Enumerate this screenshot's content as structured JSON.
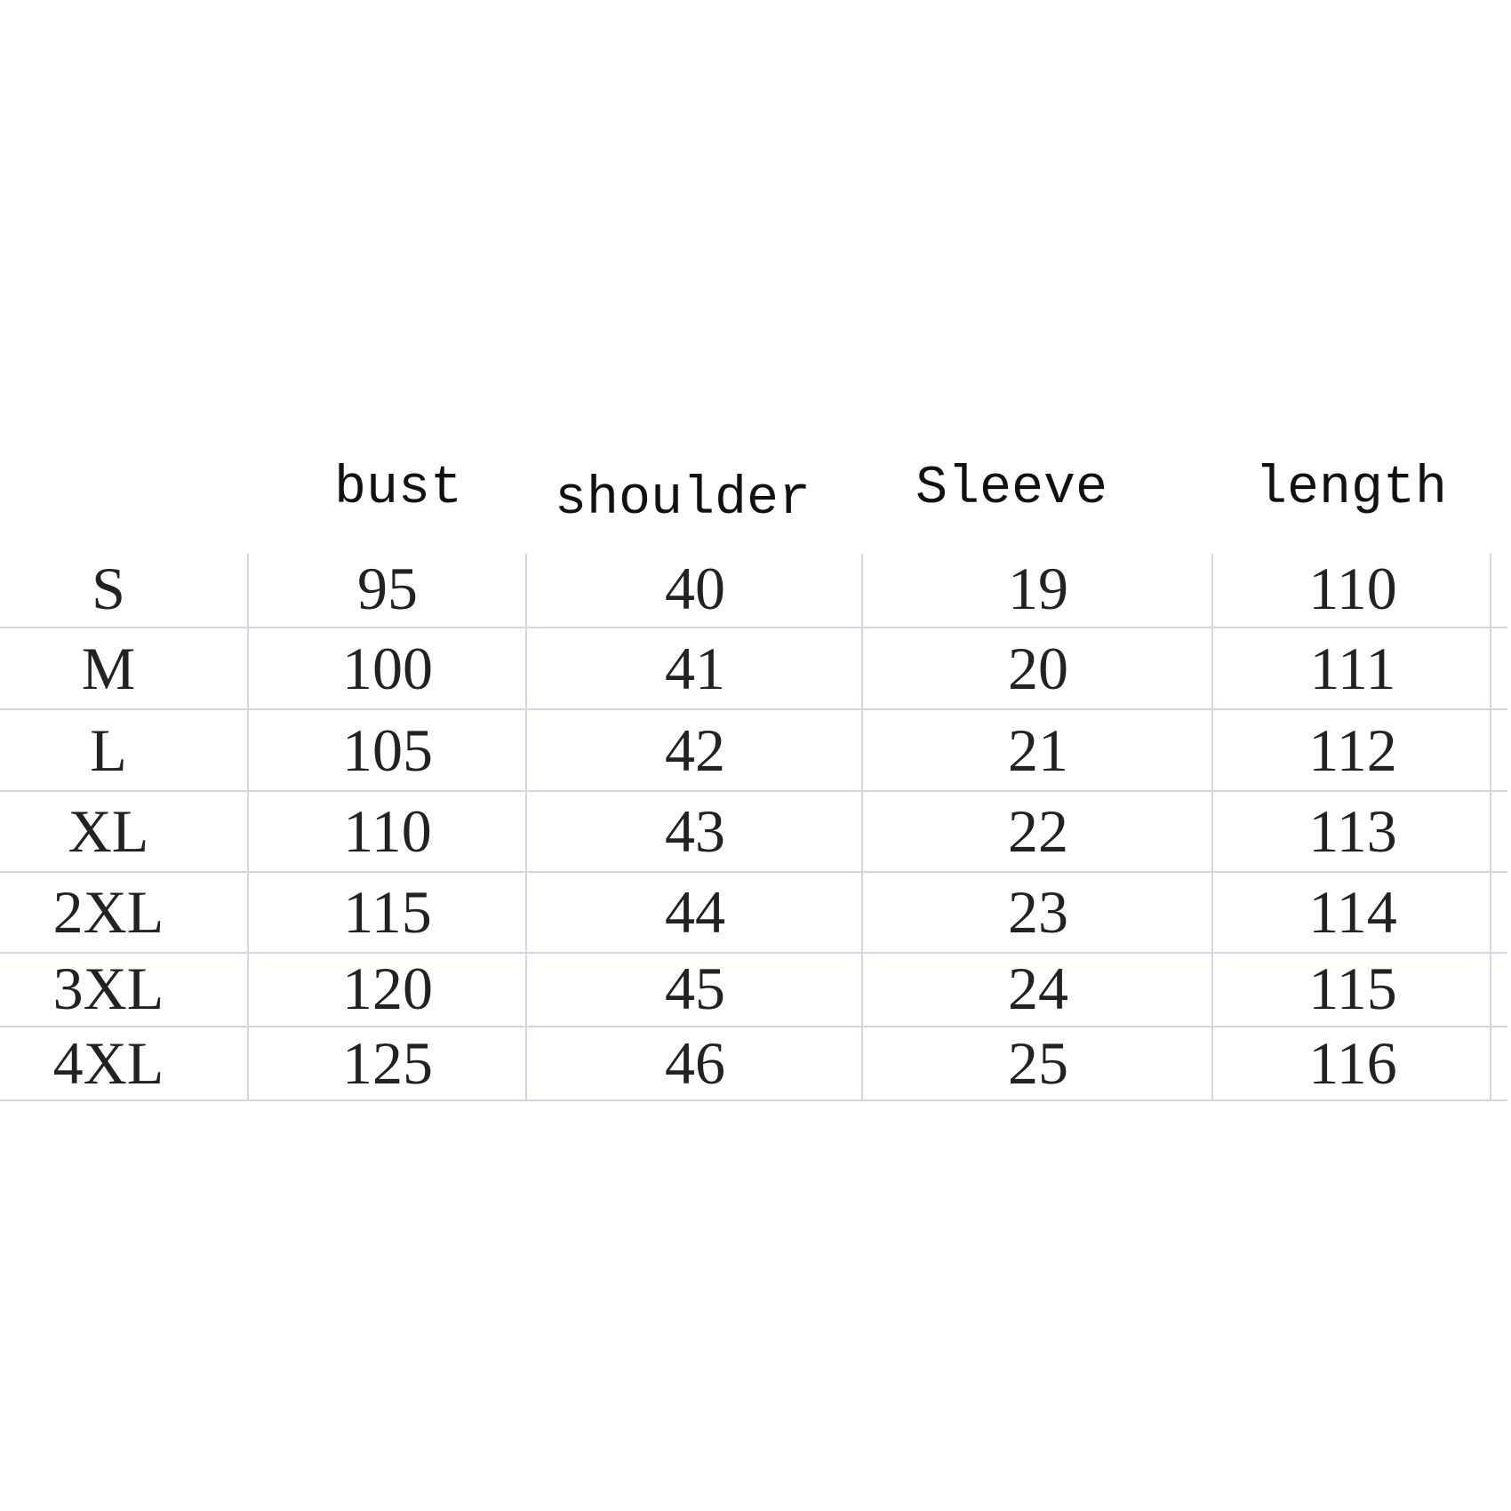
{
  "table": {
    "headers": [
      "bust",
      "shoulder",
      "Sleeve",
      "length"
    ],
    "rows": [
      {
        "size": "S",
        "bust": "95",
        "shoulder": "40",
        "sleeve": "19",
        "length": "110"
      },
      {
        "size": "M",
        "bust": "100",
        "shoulder": "41",
        "sleeve": "20",
        "length": "111"
      },
      {
        "size": "L",
        "bust": "105",
        "shoulder": "42",
        "sleeve": "21",
        "length": "112"
      },
      {
        "size": "XL",
        "bust": "110",
        "shoulder": "43",
        "sleeve": "22",
        "length": "113"
      },
      {
        "size": "2XL",
        "bust": "115",
        "shoulder": "44",
        "sleeve": "23",
        "length": "114"
      },
      {
        "size": "3XL",
        "bust": "120",
        "shoulder": "45",
        "sleeve": "24",
        "length": "115"
      },
      {
        "size": "4XL",
        "bust": "125",
        "shoulder": "46",
        "sleeve": "25",
        "length": "116"
      }
    ]
  },
  "colors": {
    "gridline": "#d4d4e6",
    "text": "#222222",
    "background": "#ffffff"
  }
}
